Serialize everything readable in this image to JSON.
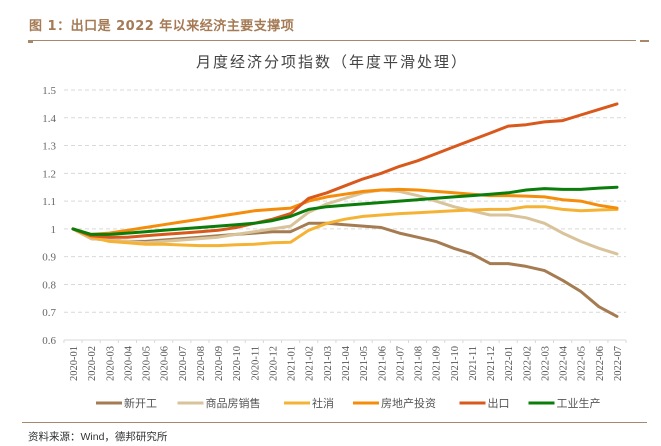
{
  "figure": {
    "title": "图 1：出口是 2022 年以来经济主要支撑项",
    "source": "资料来源：Wind，德邦研究所"
  },
  "colors": {
    "header_rule": "#a8886a",
    "title_text": "#a57a55"
  },
  "chart_data": {
    "type": "line",
    "title": "月度经济分项指数（年度平滑处理）",
    "xlabel": "",
    "ylabel": "",
    "ylim": [
      0.6,
      1.5
    ],
    "yticks": [
      "0.6",
      "0.7",
      "0.8",
      "0.9",
      "1",
      "1.1",
      "1.2",
      "1.3",
      "1.4",
      "1.5"
    ],
    "grid": "horizontal-dashed",
    "legend_position": "bottom",
    "x": [
      "2020-01",
      "2020-02",
      "2020-03",
      "2020-04",
      "2020-05",
      "2020-06",
      "2020-07",
      "2020-08",
      "2020-09",
      "2020-10",
      "2020-11",
      "2020-12",
      "2021-01",
      "2021-02",
      "2021-03",
      "2021-04",
      "2021-05",
      "2021-06",
      "2021-07",
      "2021-08",
      "2021-09",
      "2021-10",
      "2021-11",
      "2021-12",
      "2022-01",
      "2022-02",
      "2022-03",
      "2022-04",
      "2022-05",
      "2022-06",
      "2022-07"
    ],
    "series": [
      {
        "name": "新开工",
        "color": "#a57c52",
        "values": [
          1.0,
          0.965,
          0.96,
          0.955,
          0.955,
          0.96,
          0.965,
          0.97,
          0.975,
          0.98,
          0.985,
          0.99,
          0.99,
          1.02,
          1.02,
          1.015,
          1.01,
          1.005,
          0.985,
          0.97,
          0.955,
          0.93,
          0.91,
          0.875,
          0.875,
          0.865,
          0.85,
          0.815,
          0.775,
          0.72,
          0.685
        ]
      },
      {
        "name": "商品房销售",
        "color": "#d9c39a",
        "values": [
          1.0,
          0.965,
          0.96,
          0.955,
          0.95,
          0.955,
          0.96,
          0.965,
          0.97,
          0.98,
          0.99,
          1.0,
          1.01,
          1.06,
          1.09,
          1.11,
          1.13,
          1.14,
          1.135,
          1.12,
          1.1,
          1.08,
          1.065,
          1.05,
          1.05,
          1.04,
          1.02,
          0.985,
          0.955,
          0.93,
          0.91
        ]
      },
      {
        "name": "社消",
        "color": "#f5b335",
        "values": [
          1.0,
          0.97,
          0.955,
          0.95,
          0.945,
          0.945,
          0.942,
          0.94,
          0.94,
          0.943,
          0.945,
          0.95,
          0.952,
          0.995,
          1.02,
          1.035,
          1.045,
          1.05,
          1.055,
          1.058,
          1.062,
          1.065,
          1.068,
          1.07,
          1.07,
          1.08,
          1.08,
          1.07,
          1.065,
          1.068,
          1.07
        ]
      },
      {
        "name": "房地产投资",
        "color": "#f58c0a",
        "values": [
          1.0,
          0.98,
          0.985,
          0.995,
          1.005,
          1.015,
          1.025,
          1.035,
          1.045,
          1.055,
          1.065,
          1.07,
          1.075,
          1.1,
          1.115,
          1.125,
          1.135,
          1.14,
          1.142,
          1.14,
          1.135,
          1.13,
          1.125,
          1.12,
          1.12,
          1.118,
          1.115,
          1.105,
          1.1,
          1.085,
          1.075
        ]
      },
      {
        "name": "出口",
        "color": "#d9581c",
        "values": [
          1.0,
          0.975,
          0.97,
          0.97,
          0.975,
          0.98,
          0.985,
          0.99,
          0.995,
          1.005,
          1.02,
          1.035,
          1.055,
          1.11,
          1.13,
          1.155,
          1.18,
          1.2,
          1.225,
          1.245,
          1.27,
          1.295,
          1.32,
          1.345,
          1.37,
          1.375,
          1.385,
          1.39,
          1.41,
          1.43,
          1.45
        ]
      },
      {
        "name": "工业生产",
        "color": "#0a7d0a",
        "values": [
          1.0,
          0.98,
          0.98,
          0.985,
          0.99,
          0.995,
          1.0,
          1.005,
          1.01,
          1.015,
          1.02,
          1.03,
          1.045,
          1.07,
          1.08,
          1.085,
          1.09,
          1.095,
          1.1,
          1.105,
          1.11,
          1.115,
          1.12,
          1.125,
          1.13,
          1.14,
          1.145,
          1.142,
          1.142,
          1.147,
          1.15
        ]
      }
    ]
  }
}
